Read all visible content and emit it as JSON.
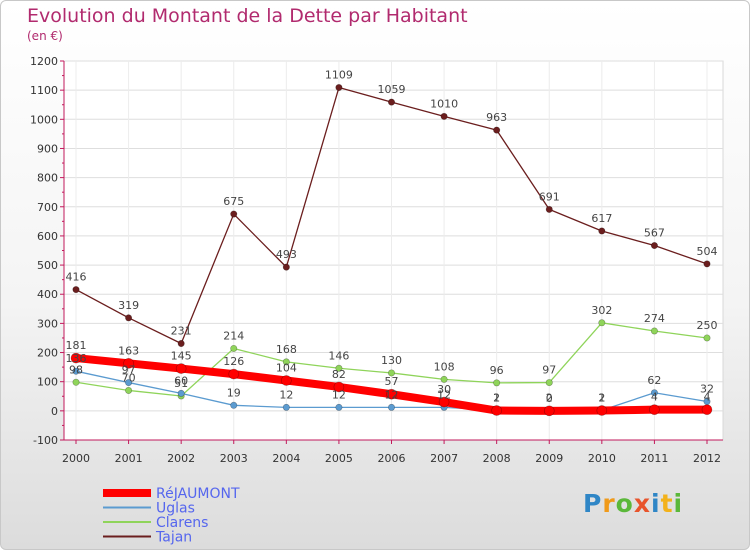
{
  "title": "Evolution du Montant de la Dette par Habitant",
  "subtitle": "(en €)",
  "logo_text": "Proxiti",
  "chart_data": {
    "type": "line",
    "title": "Evolution du Montant de la Dette par Habitant",
    "subtitle": "(en €)",
    "x": [
      "2000",
      "2001",
      "2002",
      "2003",
      "2004",
      "2005",
      "2006",
      "2007",
      "2008",
      "2009",
      "2010",
      "2011",
      "2012"
    ],
    "ylim": [
      -100,
      1200
    ],
    "yticks": [
      -100,
      0,
      100,
      200,
      300,
      400,
      500,
      600,
      700,
      800,
      900,
      1000,
      1100,
      1200
    ],
    "grid": true,
    "legend_position": "bottom-left",
    "series": [
      {
        "name": "Tajan",
        "color": "#6b1e1e",
        "width": 1.3,
        "marker": 3.2,
        "values": [
          416,
          319,
          231,
          675,
          493,
          1109,
          1059,
          1010,
          963,
          691,
          617,
          567,
          504
        ]
      },
      {
        "name": "Clarens",
        "color": "#8fd45a",
        "width": 1.3,
        "marker": 3.2,
        "values": [
          98,
          70,
          51,
          214,
          168,
          146,
          130,
          108,
          96,
          97,
          302,
          274,
          250
        ]
      },
      {
        "name": "Uglas",
        "color": "#5b9bd0",
        "width": 1.3,
        "marker": 3.2,
        "values": [
          136,
          97,
          60,
          19,
          12,
          12,
          12,
          12,
          2,
          2,
          2,
          62,
          32
        ]
      },
      {
        "name": "RéJAUMONT",
        "color": "#ff0000",
        "width": 8,
        "marker": 5,
        "values": [
          181,
          163,
          145,
          126,
          104,
          82,
          57,
          30,
          1,
          0,
          1,
          4,
          4
        ]
      }
    ],
    "data_labels": {
      "Tajan": [
        "416",
        "319",
        "231",
        "675",
        "493",
        "1109",
        "1059",
        "1010",
        "963",
        "691",
        "617",
        "567",
        "504"
      ],
      "Clarens": [
        "98",
        "70",
        "51",
        "214",
        "168",
        "146",
        "130",
        "108",
        "96",
        "97",
        "302",
        "274",
        "250"
      ],
      "Uglas": [
        "136",
        "97",
        "60",
        "19",
        "12",
        "12",
        "12",
        "12",
        "2",
        "2",
        "2",
        "62",
        "32"
      ],
      "RéJAUMONT": [
        "181",
        "163",
        "145",
        "126",
        "104",
        "82",
        "57",
        "30",
        "1",
        "0",
        "1",
        "4",
        "4"
      ]
    },
    "legend_order": [
      "RéJAUMONT",
      "Uglas",
      "Clarens",
      "Tajan"
    ]
  }
}
